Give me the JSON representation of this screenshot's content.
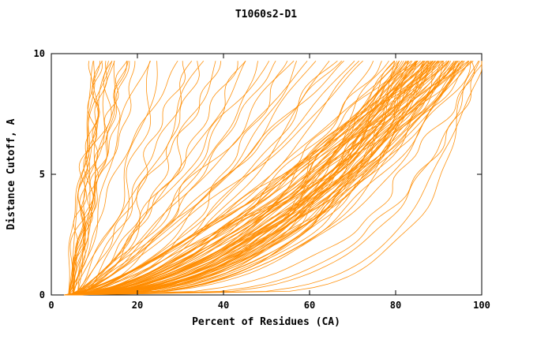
{
  "chart_data": {
    "type": "line",
    "title": "T1060s2-D1",
    "xlabel": "Percent of Residues (CA)",
    "ylabel": "Distance Cutoff, A",
    "xlim": [
      0,
      100
    ],
    "ylim": [
      0,
      10
    ],
    "x_ticks": [
      0,
      20,
      40,
      60,
      80,
      100
    ],
    "y_ticks": [
      0,
      5,
      10
    ],
    "grid": false,
    "legend": "none",
    "line_color": "#ff8c00",
    "frame_color": "#000000",
    "background": "#ffffff",
    "y_curve_top": 9.7,
    "curve_model": "x(y) = start + (end - start) * (y / y_curve_top) ^ p ; each curve = [start_percent, end_percent_at_top, p]",
    "curves": [
      [
        4,
        10,
        1.0
      ],
      [
        5,
        11,
        1.1
      ],
      [
        4,
        12,
        0.9
      ],
      [
        5,
        12,
        1.2
      ],
      [
        4,
        13,
        1.0
      ],
      [
        5,
        13,
        1.3
      ],
      [
        4,
        14,
        0.8
      ],
      [
        5,
        14,
        1.1
      ],
      [
        6,
        15,
        1.0
      ],
      [
        4,
        15,
        1.2
      ],
      [
        5,
        16,
        0.9
      ],
      [
        6,
        17,
        1.1
      ],
      [
        4,
        18,
        1.0
      ],
      [
        5,
        19,
        1.3
      ],
      [
        4,
        11,
        1.4
      ],
      [
        5,
        10,
        0.8
      ],
      [
        4,
        22,
        0.9
      ],
      [
        5,
        25,
        0.7
      ],
      [
        4,
        28,
        1.0
      ],
      [
        6,
        30,
        0.6
      ],
      [
        5,
        33,
        0.8
      ],
      [
        4,
        36,
        0.9
      ],
      [
        5,
        38,
        0.6
      ],
      [
        6,
        40,
        1.0
      ],
      [
        4,
        43,
        0.7
      ],
      [
        5,
        46,
        0.8
      ],
      [
        4,
        48,
        0.6
      ],
      [
        6,
        50,
        0.9
      ],
      [
        5,
        53,
        0.7
      ],
      [
        4,
        56,
        0.8
      ],
      [
        5,
        58,
        0.6
      ],
      [
        6,
        60,
        0.9
      ],
      [
        4,
        62,
        0.7
      ],
      [
        5,
        65,
        0.6
      ],
      [
        4,
        67,
        0.8
      ],
      [
        6,
        70,
        0.7
      ],
      [
        5,
        72,
        0.6
      ],
      [
        4,
        74,
        0.8
      ],
      [
        5,
        20,
        1.1
      ],
      [
        6,
        24,
        0.5
      ],
      [
        4,
        34,
        0.5
      ],
      [
        5,
        44,
        0.5
      ],
      [
        6,
        54,
        0.5
      ],
      [
        4,
        64,
        0.5
      ],
      [
        5,
        69,
        0.9
      ],
      [
        6,
        75,
        0.55
      ],
      [
        4,
        78,
        0.45
      ],
      [
        5,
        78,
        0.6
      ],
      [
        3,
        79,
        0.5
      ],
      [
        6,
        79,
        0.38
      ],
      [
        4,
        80,
        0.55
      ],
      [
        5,
        80,
        0.42
      ],
      [
        3,
        80,
        0.7
      ],
      [
        6,
        81,
        0.5
      ],
      [
        4,
        81,
        0.36
      ],
      [
        5,
        81,
        0.62
      ],
      [
        3,
        82,
        0.48
      ],
      [
        6,
        82,
        0.4
      ],
      [
        4,
        82,
        0.58
      ],
      [
        5,
        83,
        0.44
      ],
      [
        3,
        83,
        0.52
      ],
      [
        6,
        83,
        0.65
      ],
      [
        4,
        84,
        0.4
      ],
      [
        5,
        84,
        0.5
      ],
      [
        3,
        84,
        0.6
      ],
      [
        6,
        84,
        0.35
      ],
      [
        4,
        85,
        0.55
      ],
      [
        5,
        85,
        0.45
      ],
      [
        3,
        85,
        0.65
      ],
      [
        6,
        85,
        0.38
      ],
      [
        4,
        86,
        0.5
      ],
      [
        5,
        86,
        0.42
      ],
      [
        3,
        86,
        0.58
      ],
      [
        6,
        86,
        0.33
      ],
      [
        4,
        87,
        0.47
      ],
      [
        5,
        87,
        0.6
      ],
      [
        3,
        87,
        0.4
      ],
      [
        6,
        87,
        0.52
      ],
      [
        4,
        88,
        0.44
      ],
      [
        5,
        88,
        0.56
      ],
      [
        3,
        88,
        0.36
      ],
      [
        6,
        88,
        0.64
      ],
      [
        4,
        89,
        0.48
      ],
      [
        5,
        89,
        0.4
      ],
      [
        3,
        89,
        0.55
      ],
      [
        6,
        89,
        0.34
      ],
      [
        4,
        90,
        0.5
      ],
      [
        5,
        90,
        0.43
      ],
      [
        3,
        90,
        0.6
      ],
      [
        6,
        90,
        0.37
      ],
      [
        4,
        91,
        0.46
      ],
      [
        5,
        91,
        0.54
      ],
      [
        3,
        91,
        0.39
      ],
      [
        6,
        91,
        0.62
      ],
      [
        4,
        92,
        0.44
      ],
      [
        5,
        92,
        0.5
      ],
      [
        3,
        92,
        0.35
      ],
      [
        6,
        92,
        0.57
      ],
      [
        4,
        93,
        0.42
      ],
      [
        5,
        93,
        0.48
      ],
      [
        3,
        93,
        0.55
      ],
      [
        6,
        93,
        0.36
      ],
      [
        4,
        94,
        0.45
      ],
      [
        5,
        94,
        0.52
      ],
      [
        3,
        94,
        0.38
      ],
      [
        6,
        94,
        0.6
      ],
      [
        4,
        95,
        0.43
      ],
      [
        5,
        95,
        0.5
      ],
      [
        3,
        95,
        0.34
      ],
      [
        6,
        95,
        0.56
      ],
      [
        4,
        96,
        0.41
      ],
      [
        5,
        96,
        0.47
      ],
      [
        3,
        96,
        0.53
      ],
      [
        6,
        96,
        0.36
      ],
      [
        4,
        97,
        0.44
      ],
      [
        5,
        97,
        0.5
      ],
      [
        3,
        97,
        0.33
      ],
      [
        6,
        97,
        0.58
      ],
      [
        4,
        85,
        0.75
      ],
      [
        5,
        88,
        0.8
      ],
      [
        3,
        92,
        0.7
      ],
      [
        6,
        95,
        0.72
      ],
      [
        4,
        90,
        0.78
      ],
      [
        5,
        93,
        0.68
      ],
      [
        3,
        87,
        0.74
      ],
      [
        6,
        89,
        0.8
      ],
      [
        4,
        99,
        0.22
      ],
      [
        5,
        100,
        0.18
      ],
      [
        4,
        98,
        0.28
      ],
      [
        6,
        100,
        0.25
      ],
      [
        5,
        99,
        0.15
      ]
    ]
  }
}
